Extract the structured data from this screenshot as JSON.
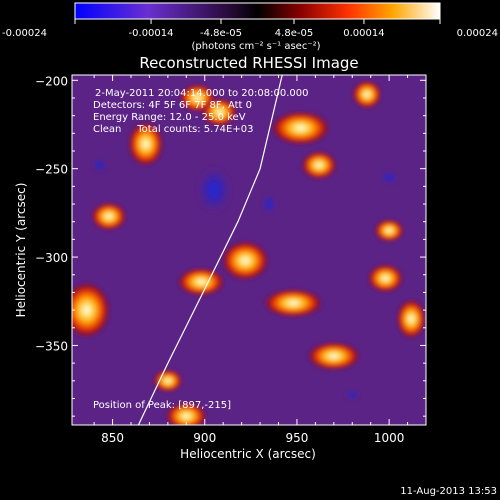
{
  "chart_data": {
    "type": "heatmap",
    "title": "Reconstructed RHESSI Image",
    "xlabel": "Heliocentric X (arcsec)",
    "ylabel": "Heliocentric Y (arcsec)",
    "xlim": [
      828,
      1020
    ],
    "ylim": [
      -395,
      -197
    ],
    "x_ticks": [
      850,
      900,
      950,
      1000
    ],
    "y_ticks": [
      -200,
      -250,
      -300,
      -350
    ],
    "colorbar": {
      "range": [
        -0.00024,
        0.00024
      ],
      "tick_values": [
        -0.00024,
        -0.00014,
        -4.8e-05,
        4.8e-05,
        0.00014,
        0.00024
      ],
      "tick_labels": [
        "-0.00024",
        "-0.00014",
        "-4.8e-05",
        "4.8e-05",
        "0.00014",
        "0.00024"
      ],
      "unit_label": "(photons cm⁻² s⁻¹ asec⁻²)",
      "colors": [
        "#0000ff",
        "#6a2fd0",
        "#2a0a3a",
        "#000000",
        "#8b0000",
        "#ff3300",
        "#ffa500",
        "#ffffff"
      ]
    },
    "annotations": [
      "2-May-2011 20:04:14.000 to 20:08:00.000",
      "Detectors: 4F 5F 6F 7F 8F, Att 0",
      "Energy Range: 12.0 - 25.0 keV",
      "Clean     Total counts: 5.74E+03"
    ],
    "peak_label": "Position of Peak: [897,-215]",
    "limb": [
      [
        864,
        -395
      ],
      [
        880,
        -360
      ],
      [
        900,
        -318
      ],
      [
        918,
        -280
      ],
      [
        930,
        -250
      ],
      [
        942,
        -197
      ]
    ],
    "sources": [
      {
        "x": 896,
        "y": -210,
        "w": 6,
        "h": 5
      },
      {
        "x": 908,
        "y": -218,
        "w": 6,
        "h": 5
      },
      {
        "x": 868,
        "y": -236,
        "w": 6,
        "h": 8
      },
      {
        "x": 952,
        "y": -227,
        "w": 10,
        "h": 6
      },
      {
        "x": 988,
        "y": -208,
        "w": 5,
        "h": 5
      },
      {
        "x": 962,
        "y": -248,
        "w": 6,
        "h": 5
      },
      {
        "x": 848,
        "y": -277,
        "w": 6,
        "h": 5
      },
      {
        "x": 922,
        "y": -302,
        "w": 8,
        "h": 7
      },
      {
        "x": 898,
        "y": -314,
        "w": 8,
        "h": 5
      },
      {
        "x": 836,
        "y": -330,
        "w": 8,
        "h": 10
      },
      {
        "x": 948,
        "y": -326,
        "w": 10,
        "h": 5
      },
      {
        "x": 998,
        "y": -312,
        "w": 6,
        "h": 5
      },
      {
        "x": 1012,
        "y": -335,
        "w": 5,
        "h": 7
      },
      {
        "x": 970,
        "y": -356,
        "w": 9,
        "h": 5
      },
      {
        "x": 890,
        "y": -390,
        "w": 7,
        "h": 5
      },
      {
        "x": 880,
        "y": -370,
        "w": 5,
        "h": 4
      },
      {
        "x": 1000,
        "y": -285,
        "w": 5,
        "h": 4
      }
    ],
    "dips": [
      {
        "x": 905,
        "y": -262,
        "w": 10,
        "h": 14
      },
      {
        "x": 1000,
        "y": -255,
        "w": 5,
        "h": 4
      },
      {
        "x": 980,
        "y": -378,
        "w": 4,
        "h": 3
      },
      {
        "x": 843,
        "y": -248,
        "w": 4,
        "h": 4
      },
      {
        "x": 935,
        "y": -270,
        "w": 4,
        "h": 6
      }
    ]
  },
  "footer": {
    "timestamp": "11-Aug-2013 13:53"
  }
}
